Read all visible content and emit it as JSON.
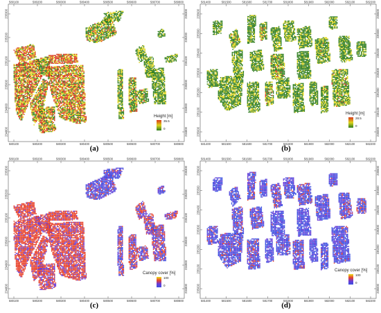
{
  "panels": [
    {
      "id": "a",
      "caption": "(a)",
      "x_ticks": [
        "580100",
        "580200",
        "580300",
        "580400",
        "580500",
        "580600",
        "580700",
        "580800"
      ],
      "y_ticks": [
        "235300",
        "235200",
        "235100",
        "235000",
        "234900",
        "234800"
      ],
      "legend": {
        "title": "Height [m]",
        "max": "35.5",
        "min": "0"
      },
      "scheme": "height"
    },
    {
      "id": "b",
      "caption": "(b)",
      "x_ticks": [
        "581400",
        "581500",
        "581600",
        "581700",
        "581800",
        "581900",
        "582000",
        "582100",
        "582200"
      ],
      "y_ticks": [
        "235600",
        "235500",
        "235400",
        "235300",
        "235200",
        "235100",
        "235000"
      ],
      "legend": {
        "title": "Height [m]",
        "max": "28.5",
        "min": "0"
      },
      "scheme": "height"
    },
    {
      "id": "c",
      "caption": "(c)",
      "x_ticks": [
        "580100",
        "580200",
        "580300",
        "580400",
        "580500",
        "580600",
        "580700",
        "580800"
      ],
      "y_ticks": [
        "235300",
        "235200",
        "235100",
        "235000",
        "234900",
        "234800"
      ],
      "legend": {
        "title": "Canopy cover [%]",
        "max": "100",
        "min": "0"
      },
      "scheme": "canopy"
    },
    {
      "id": "d",
      "caption": "(d)",
      "x_ticks": [
        "581400",
        "581500",
        "581600",
        "581700",
        "581800",
        "581900",
        "582000",
        "582100",
        "582200"
      ],
      "y_ticks": [
        "235600",
        "235500",
        "235400",
        "235300",
        "235200",
        "235100",
        "235000"
      ],
      "legend": {
        "title": "Canopy cover [%]",
        "max": "100",
        "min": "0"
      },
      "scheme": "canopy"
    }
  ],
  "colors": {
    "height_low": "#2f7d1f",
    "height_mid": "#e0d51c",
    "height_high": "#d8361a",
    "canopy_high": "#e8412a",
    "canopy_mid": "#6a3cd6",
    "canopy_low": "#3b4fe0"
  }
}
